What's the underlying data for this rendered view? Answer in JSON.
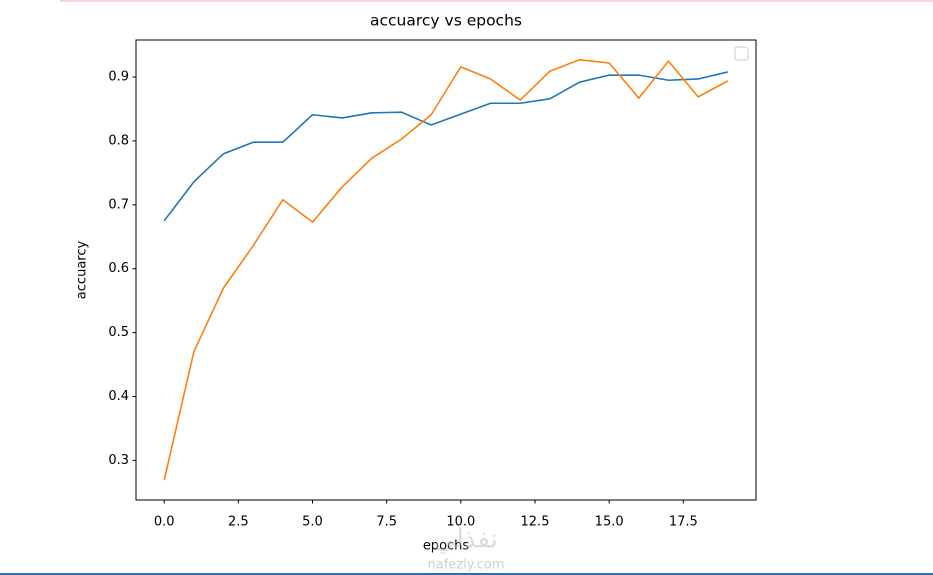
{
  "chart_data": {
    "type": "line",
    "title": "accuarcy vs epochs",
    "x_label": "epochs",
    "y_label": "accuarcy",
    "x": [
      0,
      1,
      2,
      3,
      4,
      5,
      6,
      7,
      8,
      9,
      10,
      11,
      12,
      13,
      14,
      15,
      16,
      17,
      18,
      19
    ],
    "series": [
      {
        "color": "#1f77b4",
        "values": [
          0.675,
          0.736,
          0.78,
          0.798,
          0.798,
          0.841,
          0.836,
          0.844,
          0.845,
          0.825,
          0.842,
          0.859,
          0.859,
          0.866,
          0.892,
          0.903,
          0.903,
          0.895,
          0.897,
          0.908
        ]
      },
      {
        "color": "#ff7f0e",
        "values": [
          0.269,
          0.47,
          0.57,
          0.636,
          0.708,
          0.673,
          0.728,
          0.773,
          0.803,
          0.841,
          0.916,
          0.897,
          0.864,
          0.909,
          0.927,
          0.922,
          0.867,
          0.925,
          0.869,
          0.894
        ]
      }
    ],
    "xlim": [
      -0.95,
      19.95
    ],
    "ylim": [
      0.238,
      0.958
    ],
    "xticks": [
      {
        "value": 0,
        "label": "0.0"
      },
      2.5,
      {
        "value": 5,
        "label": "5.0"
      },
      7.5,
      {
        "value": 10,
        "label": "10.0"
      },
      12.5,
      {
        "value": 15,
        "label": "15.0"
      },
      17.5
    ],
    "yticks": [
      0.3,
      0.4,
      0.5,
      0.6,
      0.7,
      0.8,
      0.9
    ],
    "grid": false,
    "legend": "upper right"
  },
  "watermark": {
    "arabic": "نفذلي",
    "latin": "nafezly.com"
  }
}
